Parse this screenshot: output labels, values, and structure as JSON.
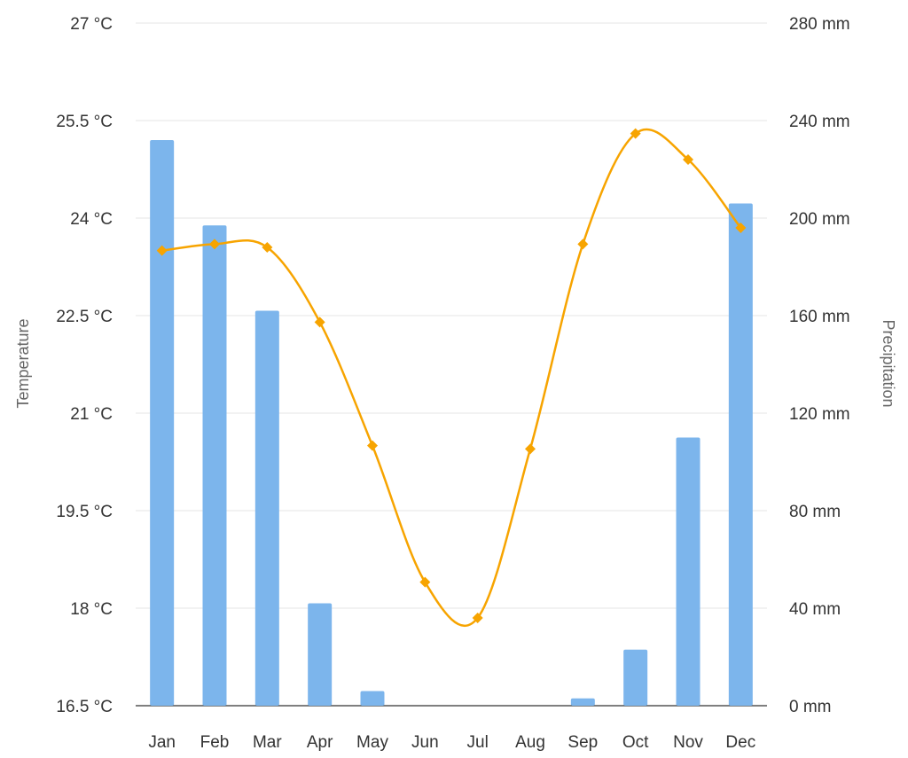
{
  "chart_data": {
    "type": "bar+line",
    "categories": [
      "Jan",
      "Feb",
      "Mar",
      "Apr",
      "May",
      "Jun",
      "Jul",
      "Aug",
      "Sep",
      "Oct",
      "Nov",
      "Dec"
    ],
    "series": [
      {
        "name": "Precipitation",
        "type": "bar",
        "axis": "right",
        "unit": "mm",
        "values": [
          232,
          197,
          162,
          42,
          6,
          0,
          0,
          0,
          3,
          23,
          110,
          206
        ]
      },
      {
        "name": "Temperature",
        "type": "line",
        "axis": "left",
        "unit": "°C",
        "values": [
          23.5,
          23.6,
          23.55,
          22.4,
          20.5,
          18.4,
          17.85,
          20.45,
          23.6,
          25.3,
          24.9,
          23.85
        ]
      }
    ],
    "y_left": {
      "label": "Temperature",
      "min": 16.5,
      "max": 27,
      "step": 1.5,
      "ticks": [
        "16.5 °C",
        "18 °C",
        "19.5 °C",
        "21 °C",
        "22.5 °C",
        "24 °C",
        "25.5 °C",
        "27 °C"
      ]
    },
    "y_right": {
      "label": "Precipitation",
      "min": 0,
      "max": 280,
      "step": 40,
      "ticks": [
        "0 mm",
        "40 mm",
        "80 mm",
        "120 mm",
        "160 mm",
        "200 mm",
        "240 mm",
        "280 mm"
      ]
    },
    "grid": true,
    "colors": {
      "bars": "#7cb5ec",
      "line": "#f7a400",
      "grid": "#e6e6e6",
      "text": "#333333",
      "axis_title": "#666666"
    }
  }
}
